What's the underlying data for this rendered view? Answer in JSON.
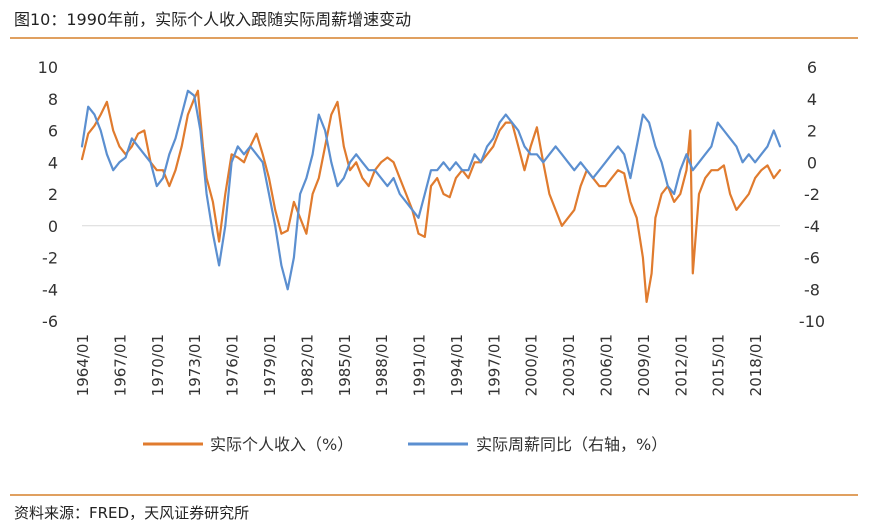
{
  "figure": {
    "title": "图10：1990年前，实际个人收入跟随实际周薪增速变动",
    "source": "资料来源：FRED，天风证券研究所"
  },
  "colors": {
    "orange": "#E07B2E",
    "blue": "#5B8FD0",
    "rule": "#E0A060"
  },
  "chart_data": {
    "type": "line",
    "title": "",
    "x_tick_labels": [
      "1964/01",
      "1967/01",
      "1970/01",
      "1973/01",
      "1976/01",
      "1979/01",
      "1982/01",
      "1985/01",
      "1988/01",
      "1991/01",
      "1994/01",
      "1997/01",
      "2000/01",
      "2003/01",
      "2006/01",
      "2009/01",
      "2012/01",
      "2015/01",
      "2018/01"
    ],
    "xlim": [
      1964.0,
      2020.0
    ],
    "left_axis": {
      "ylim": [
        -6,
        10
      ],
      "ticks": [
        -6,
        -4,
        -2,
        0,
        2,
        4,
        6,
        8,
        10
      ]
    },
    "right_axis": {
      "ylim": [
        -10,
        6
      ],
      "ticks": [
        -10,
        -8,
        -6,
        -4,
        -2,
        0,
        2,
        4,
        6
      ]
    },
    "legend": {
      "position": "bottom",
      "entries": [
        "实际个人收入（%）",
        "实际周薪同比（右轴，%）"
      ]
    },
    "series": [
      {
        "name": "实际个人收入（%）",
        "axis": "left",
        "color": "#E07B2E",
        "points": [
          [
            1964.0,
            4.2
          ],
          [
            1964.5,
            5.8
          ],
          [
            1965.0,
            6.3
          ],
          [
            1965.5,
            7.0
          ],
          [
            1966.0,
            7.8
          ],
          [
            1966.5,
            6.0
          ],
          [
            1967.0,
            5.0
          ],
          [
            1967.5,
            4.5
          ],
          [
            1968.0,
            5.0
          ],
          [
            1968.5,
            5.8
          ],
          [
            1969.0,
            6.0
          ],
          [
            1969.5,
            4.0
          ],
          [
            1970.0,
            3.5
          ],
          [
            1970.5,
            3.5
          ],
          [
            1971.0,
            2.5
          ],
          [
            1971.5,
            3.5
          ],
          [
            1972.0,
            5.0
          ],
          [
            1972.5,
            7.0
          ],
          [
            1973.0,
            8.0
          ],
          [
            1973.3,
            8.5
          ],
          [
            1973.7,
            5.0
          ],
          [
            1974.0,
            3.0
          ],
          [
            1974.5,
            1.5
          ],
          [
            1975.0,
            -1.0
          ],
          [
            1975.5,
            2.0
          ],
          [
            1976.0,
            4.5
          ],
          [
            1976.5,
            4.3
          ],
          [
            1977.0,
            4.0
          ],
          [
            1977.5,
            5.0
          ],
          [
            1978.0,
            5.8
          ],
          [
            1978.5,
            4.5
          ],
          [
            1979.0,
            3.0
          ],
          [
            1979.5,
            1.0
          ],
          [
            1980.0,
            -0.5
          ],
          [
            1980.5,
            -0.3
          ],
          [
            1981.0,
            1.5
          ],
          [
            1981.5,
            0.5
          ],
          [
            1982.0,
            -0.5
          ],
          [
            1982.5,
            2.0
          ],
          [
            1983.0,
            3.0
          ],
          [
            1983.5,
            5.0
          ],
          [
            1984.0,
            7.0
          ],
          [
            1984.5,
            7.8
          ],
          [
            1985.0,
            5.0
          ],
          [
            1985.5,
            3.5
          ],
          [
            1986.0,
            4.0
          ],
          [
            1986.5,
            3.0
          ],
          [
            1987.0,
            2.5
          ],
          [
            1987.5,
            3.5
          ],
          [
            1988.0,
            4.0
          ],
          [
            1988.5,
            4.3
          ],
          [
            1989.0,
            4.0
          ],
          [
            1989.5,
            3.0
          ],
          [
            1990.0,
            2.0
          ],
          [
            1990.5,
            1.0
          ],
          [
            1991.0,
            -0.5
          ],
          [
            1991.5,
            -0.7
          ],
          [
            1992.0,
            2.5
          ],
          [
            1992.5,
            3.0
          ],
          [
            1993.0,
            2.0
          ],
          [
            1993.5,
            1.8
          ],
          [
            1994.0,
            3.0
          ],
          [
            1994.5,
            3.5
          ],
          [
            1995.0,
            3.0
          ],
          [
            1995.5,
            4.0
          ],
          [
            1996.0,
            4.0
          ],
          [
            1996.5,
            4.5
          ],
          [
            1997.0,
            5.0
          ],
          [
            1997.5,
            6.0
          ],
          [
            1998.0,
            6.5
          ],
          [
            1998.5,
            6.5
          ],
          [
            1999.0,
            5.0
          ],
          [
            1999.5,
            3.5
          ],
          [
            2000.0,
            5.0
          ],
          [
            2000.5,
            6.2
          ],
          [
            2001.0,
            4.0
          ],
          [
            2001.5,
            2.0
          ],
          [
            2002.0,
            1.0
          ],
          [
            2002.5,
            0.0
          ],
          [
            2003.0,
            0.5
          ],
          [
            2003.5,
            1.0
          ],
          [
            2004.0,
            2.5
          ],
          [
            2004.5,
            3.5
          ],
          [
            2005.0,
            3.0
          ],
          [
            2005.5,
            2.5
          ],
          [
            2006.0,
            2.5
          ],
          [
            2006.5,
            3.0
          ],
          [
            2007.0,
            3.5
          ],
          [
            2007.5,
            3.3
          ],
          [
            2008.0,
            1.5
          ],
          [
            2008.5,
            0.5
          ],
          [
            2009.0,
            -2.0
          ],
          [
            2009.3,
            -4.8
          ],
          [
            2009.7,
            -3.0
          ],
          [
            2010.0,
            0.5
          ],
          [
            2010.5,
            2.0
          ],
          [
            2011.0,
            2.5
          ],
          [
            2011.5,
            1.5
          ],
          [
            2012.0,
            2.0
          ],
          [
            2012.5,
            3.5
          ],
          [
            2012.8,
            6.0
          ],
          [
            2013.0,
            -3.0
          ],
          [
            2013.5,
            2.0
          ],
          [
            2014.0,
            3.0
          ],
          [
            2014.5,
            3.5
          ],
          [
            2015.0,
            3.5
          ],
          [
            2015.5,
            3.8
          ],
          [
            2016.0,
            2.0
          ],
          [
            2016.5,
            1.0
          ],
          [
            2017.0,
            1.5
          ],
          [
            2017.5,
            2.0
          ],
          [
            2018.0,
            3.0
          ],
          [
            2018.5,
            3.5
          ],
          [
            2019.0,
            3.8
          ],
          [
            2019.5,
            3.0
          ],
          [
            2020.0,
            3.5
          ]
        ]
      },
      {
        "name": "实际周薪同比（右轴，%）",
        "axis": "right",
        "color": "#5B8FD0",
        "points": [
          [
            1964.0,
            1.0
          ],
          [
            1964.5,
            3.5
          ],
          [
            1965.0,
            3.0
          ],
          [
            1965.5,
            2.0
          ],
          [
            1966.0,
            0.5
          ],
          [
            1966.5,
            -0.5
          ],
          [
            1967.0,
            0.0
          ],
          [
            1967.5,
            0.3
          ],
          [
            1968.0,
            1.5
          ],
          [
            1968.5,
            1.0
          ],
          [
            1969.0,
            0.5
          ],
          [
            1969.5,
            0.0
          ],
          [
            1970.0,
            -1.5
          ],
          [
            1970.5,
            -1.0
          ],
          [
            1971.0,
            0.5
          ],
          [
            1971.5,
            1.5
          ],
          [
            1972.0,
            3.0
          ],
          [
            1972.5,
            4.5
          ],
          [
            1973.0,
            4.2
          ],
          [
            1973.5,
            2.0
          ],
          [
            1974.0,
            -2.0
          ],
          [
            1974.5,
            -4.5
          ],
          [
            1975.0,
            -6.5
          ],
          [
            1975.5,
            -4.0
          ],
          [
            1976.0,
            0.0
          ],
          [
            1976.5,
            1.0
          ],
          [
            1977.0,
            0.5
          ],
          [
            1977.5,
            1.0
          ],
          [
            1978.0,
            0.5
          ],
          [
            1978.5,
            0.0
          ],
          [
            1979.0,
            -2.0
          ],
          [
            1979.5,
            -4.0
          ],
          [
            1980.0,
            -6.5
          ],
          [
            1980.5,
            -8.0
          ],
          [
            1981.0,
            -6.0
          ],
          [
            1981.5,
            -2.0
          ],
          [
            1982.0,
            -1.0
          ],
          [
            1982.5,
            0.5
          ],
          [
            1983.0,
            3.0
          ],
          [
            1983.5,
            2.0
          ],
          [
            1984.0,
            0.0
          ],
          [
            1984.5,
            -1.5
          ],
          [
            1985.0,
            -1.0
          ],
          [
            1985.5,
            0.0
          ],
          [
            1986.0,
            0.5
          ],
          [
            1986.5,
            0.0
          ],
          [
            1987.0,
            -0.5
          ],
          [
            1987.5,
            -0.5
          ],
          [
            1988.0,
            -1.0
          ],
          [
            1988.5,
            -1.5
          ],
          [
            1989.0,
            -1.0
          ],
          [
            1989.5,
            -2.0
          ],
          [
            1990.0,
            -2.5
          ],
          [
            1990.5,
            -3.0
          ],
          [
            1991.0,
            -3.5
          ],
          [
            1991.5,
            -2.0
          ],
          [
            1992.0,
            -0.5
          ],
          [
            1992.5,
            -0.5
          ],
          [
            1993.0,
            0.0
          ],
          [
            1993.5,
            -0.5
          ],
          [
            1994.0,
            0.0
          ],
          [
            1994.5,
            -0.5
          ],
          [
            1995.0,
            -0.5
          ],
          [
            1995.5,
            0.5
          ],
          [
            1996.0,
            0.0
          ],
          [
            1996.5,
            1.0
          ],
          [
            1997.0,
            1.5
          ],
          [
            1997.5,
            2.5
          ],
          [
            1998.0,
            3.0
          ],
          [
            1998.5,
            2.5
          ],
          [
            1999.0,
            2.0
          ],
          [
            1999.5,
            1.0
          ],
          [
            2000.0,
            0.5
          ],
          [
            2000.5,
            0.5
          ],
          [
            2001.0,
            0.0
          ],
          [
            2001.5,
            0.5
          ],
          [
            2002.0,
            1.0
          ],
          [
            2002.5,
            0.5
          ],
          [
            2003.0,
            0.0
          ],
          [
            2003.5,
            -0.5
          ],
          [
            2004.0,
            0.0
          ],
          [
            2004.5,
            -0.5
          ],
          [
            2005.0,
            -1.0
          ],
          [
            2005.5,
            -0.5
          ],
          [
            2006.0,
            0.0
          ],
          [
            2006.5,
            0.5
          ],
          [
            2007.0,
            1.0
          ],
          [
            2007.5,
            0.5
          ],
          [
            2008.0,
            -1.0
          ],
          [
            2008.5,
            1.0
          ],
          [
            2009.0,
            3.0
          ],
          [
            2009.5,
            2.5
          ],
          [
            2010.0,
            1.0
          ],
          [
            2010.5,
            0.0
          ],
          [
            2011.0,
            -1.5
          ],
          [
            2011.5,
            -2.0
          ],
          [
            2012.0,
            -0.5
          ],
          [
            2012.5,
            0.5
          ],
          [
            2013.0,
            -0.5
          ],
          [
            2013.5,
            0.0
          ],
          [
            2014.0,
            0.5
          ],
          [
            2014.5,
            1.0
          ],
          [
            2015.0,
            2.5
          ],
          [
            2015.5,
            2.0
          ],
          [
            2016.0,
            1.5
          ],
          [
            2016.5,
            1.0
          ],
          [
            2017.0,
            0.0
          ],
          [
            2017.5,
            0.5
          ],
          [
            2018.0,
            0.0
          ],
          [
            2018.5,
            0.5
          ],
          [
            2019.0,
            1.0
          ],
          [
            2019.5,
            2.0
          ],
          [
            2020.0,
            1.0
          ]
        ]
      }
    ]
  }
}
